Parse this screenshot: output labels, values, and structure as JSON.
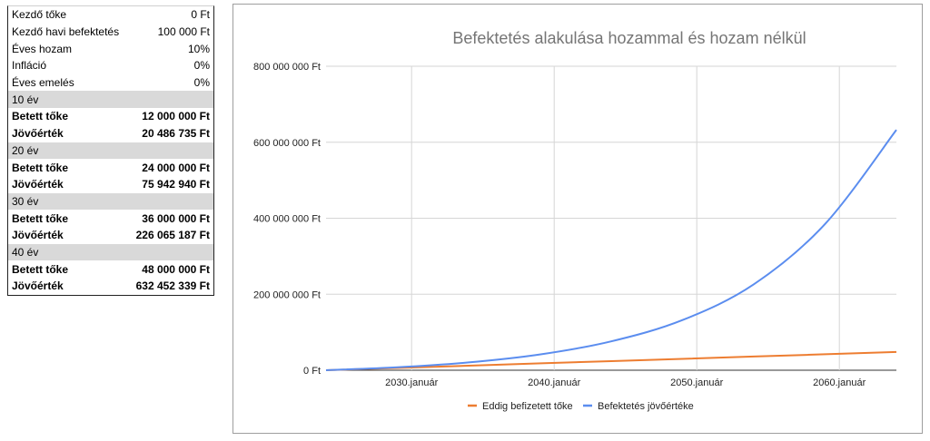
{
  "table": {
    "params": [
      {
        "label": "Kezdő tőke",
        "value": "0 Ft"
      },
      {
        "label": "Kezdő havi befektetés",
        "value": "100 000 Ft"
      },
      {
        "label": "Éves hozam",
        "value": "10%"
      },
      {
        "label": "Infláció",
        "value": "0%"
      },
      {
        "label": "Éves emelés",
        "value": "0%"
      }
    ],
    "periods": [
      {
        "header": "10 év",
        "betett_label": "Betett tőke",
        "betett": "12 000 000 Ft",
        "jovo_label": "Jövőérték",
        "jovo": "20 486 735 Ft"
      },
      {
        "header": "20 év",
        "betett_label": "Betett tőke",
        "betett": "24 000 000 Ft",
        "jovo_label": "Jövőérték",
        "jovo": "75 942 940 Ft"
      },
      {
        "header": "30 év",
        "betett_label": "Betett tőke",
        "betett": "36 000 000 Ft",
        "jovo_label": "Jövőérték",
        "jovo": "226 065 187 Ft"
      },
      {
        "header": "40 év",
        "betett_label": "Betett tőke",
        "betett": "48 000 000 Ft",
        "jovo_label": "Jövőérték",
        "jovo": "632 452 339 Ft"
      }
    ]
  },
  "chart_data": {
    "type": "line",
    "title": "Befektetés alakulása hozammal és hozam nélkül",
    "xlabel": "",
    "ylabel": "",
    "x_range": [
      2024,
      2064
    ],
    "ylim": [
      0,
      800000000
    ],
    "y_ticks": [
      0,
      200000000,
      400000000,
      600000000,
      800000000
    ],
    "y_tick_labels": [
      "0 Ft",
      "200 000 000 Ft",
      "400 000 000 Ft",
      "600 000 000 Ft",
      "800 000 000 Ft"
    ],
    "x_ticks": [
      2030,
      2040,
      2050,
      2060
    ],
    "x_tick_labels": [
      "2030.január",
      "2040.január",
      "2050.január",
      "2060.január"
    ],
    "grid": true,
    "legend_position": "bottom",
    "series": [
      {
        "name": "Eddig befizetett tőke",
        "color": "#ed7d31",
        "x": [
          2024,
          2034,
          2044,
          2054,
          2064
        ],
        "values": [
          0,
          12000000,
          24000000,
          36000000,
          48000000
        ]
      },
      {
        "name": "Befektetés jövőértéke",
        "color": "#5b8def",
        "x": [
          2024,
          2029,
          2034,
          2039,
          2044,
          2049,
          2054,
          2059,
          2064
        ],
        "values": [
          0,
          7700000,
          20486735,
          41500000,
          75942940,
          132000000,
          226065187,
          385000000,
          632452339
        ]
      }
    ]
  }
}
